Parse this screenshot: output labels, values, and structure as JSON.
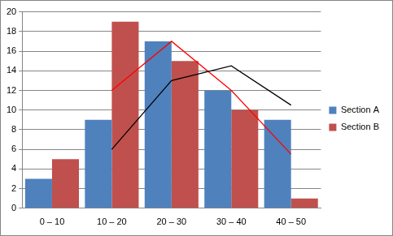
{
  "chart_data": {
    "type": "bar",
    "categories": [
      "0 – 10",
      "10 – 20",
      "20 – 30",
      "30 – 40",
      "40 – 50"
    ],
    "series": [
      {
        "name": "Section A",
        "color": "#4F81BD",
        "values": [
          3,
          9,
          17,
          12,
          9
        ]
      },
      {
        "name": "Section B",
        "color": "#C0504D",
        "values": [
          5,
          19,
          15,
          10,
          1
        ]
      },
      {
        "type": "line",
        "color": "#000000",
        "marker": "none",
        "values": [
          null,
          6,
          13,
          14.5,
          10.5
        ]
      },
      {
        "type": "line",
        "color": "#FF0000",
        "marker": "none",
        "values": [
          null,
          12,
          17,
          12,
          5.5
        ]
      }
    ],
    "ylim": [
      0,
      20
    ],
    "yticks": [
      0,
      2,
      4,
      6,
      8,
      10,
      12,
      14,
      16,
      18,
      20
    ],
    "grid": true,
    "legend": "right"
  }
}
